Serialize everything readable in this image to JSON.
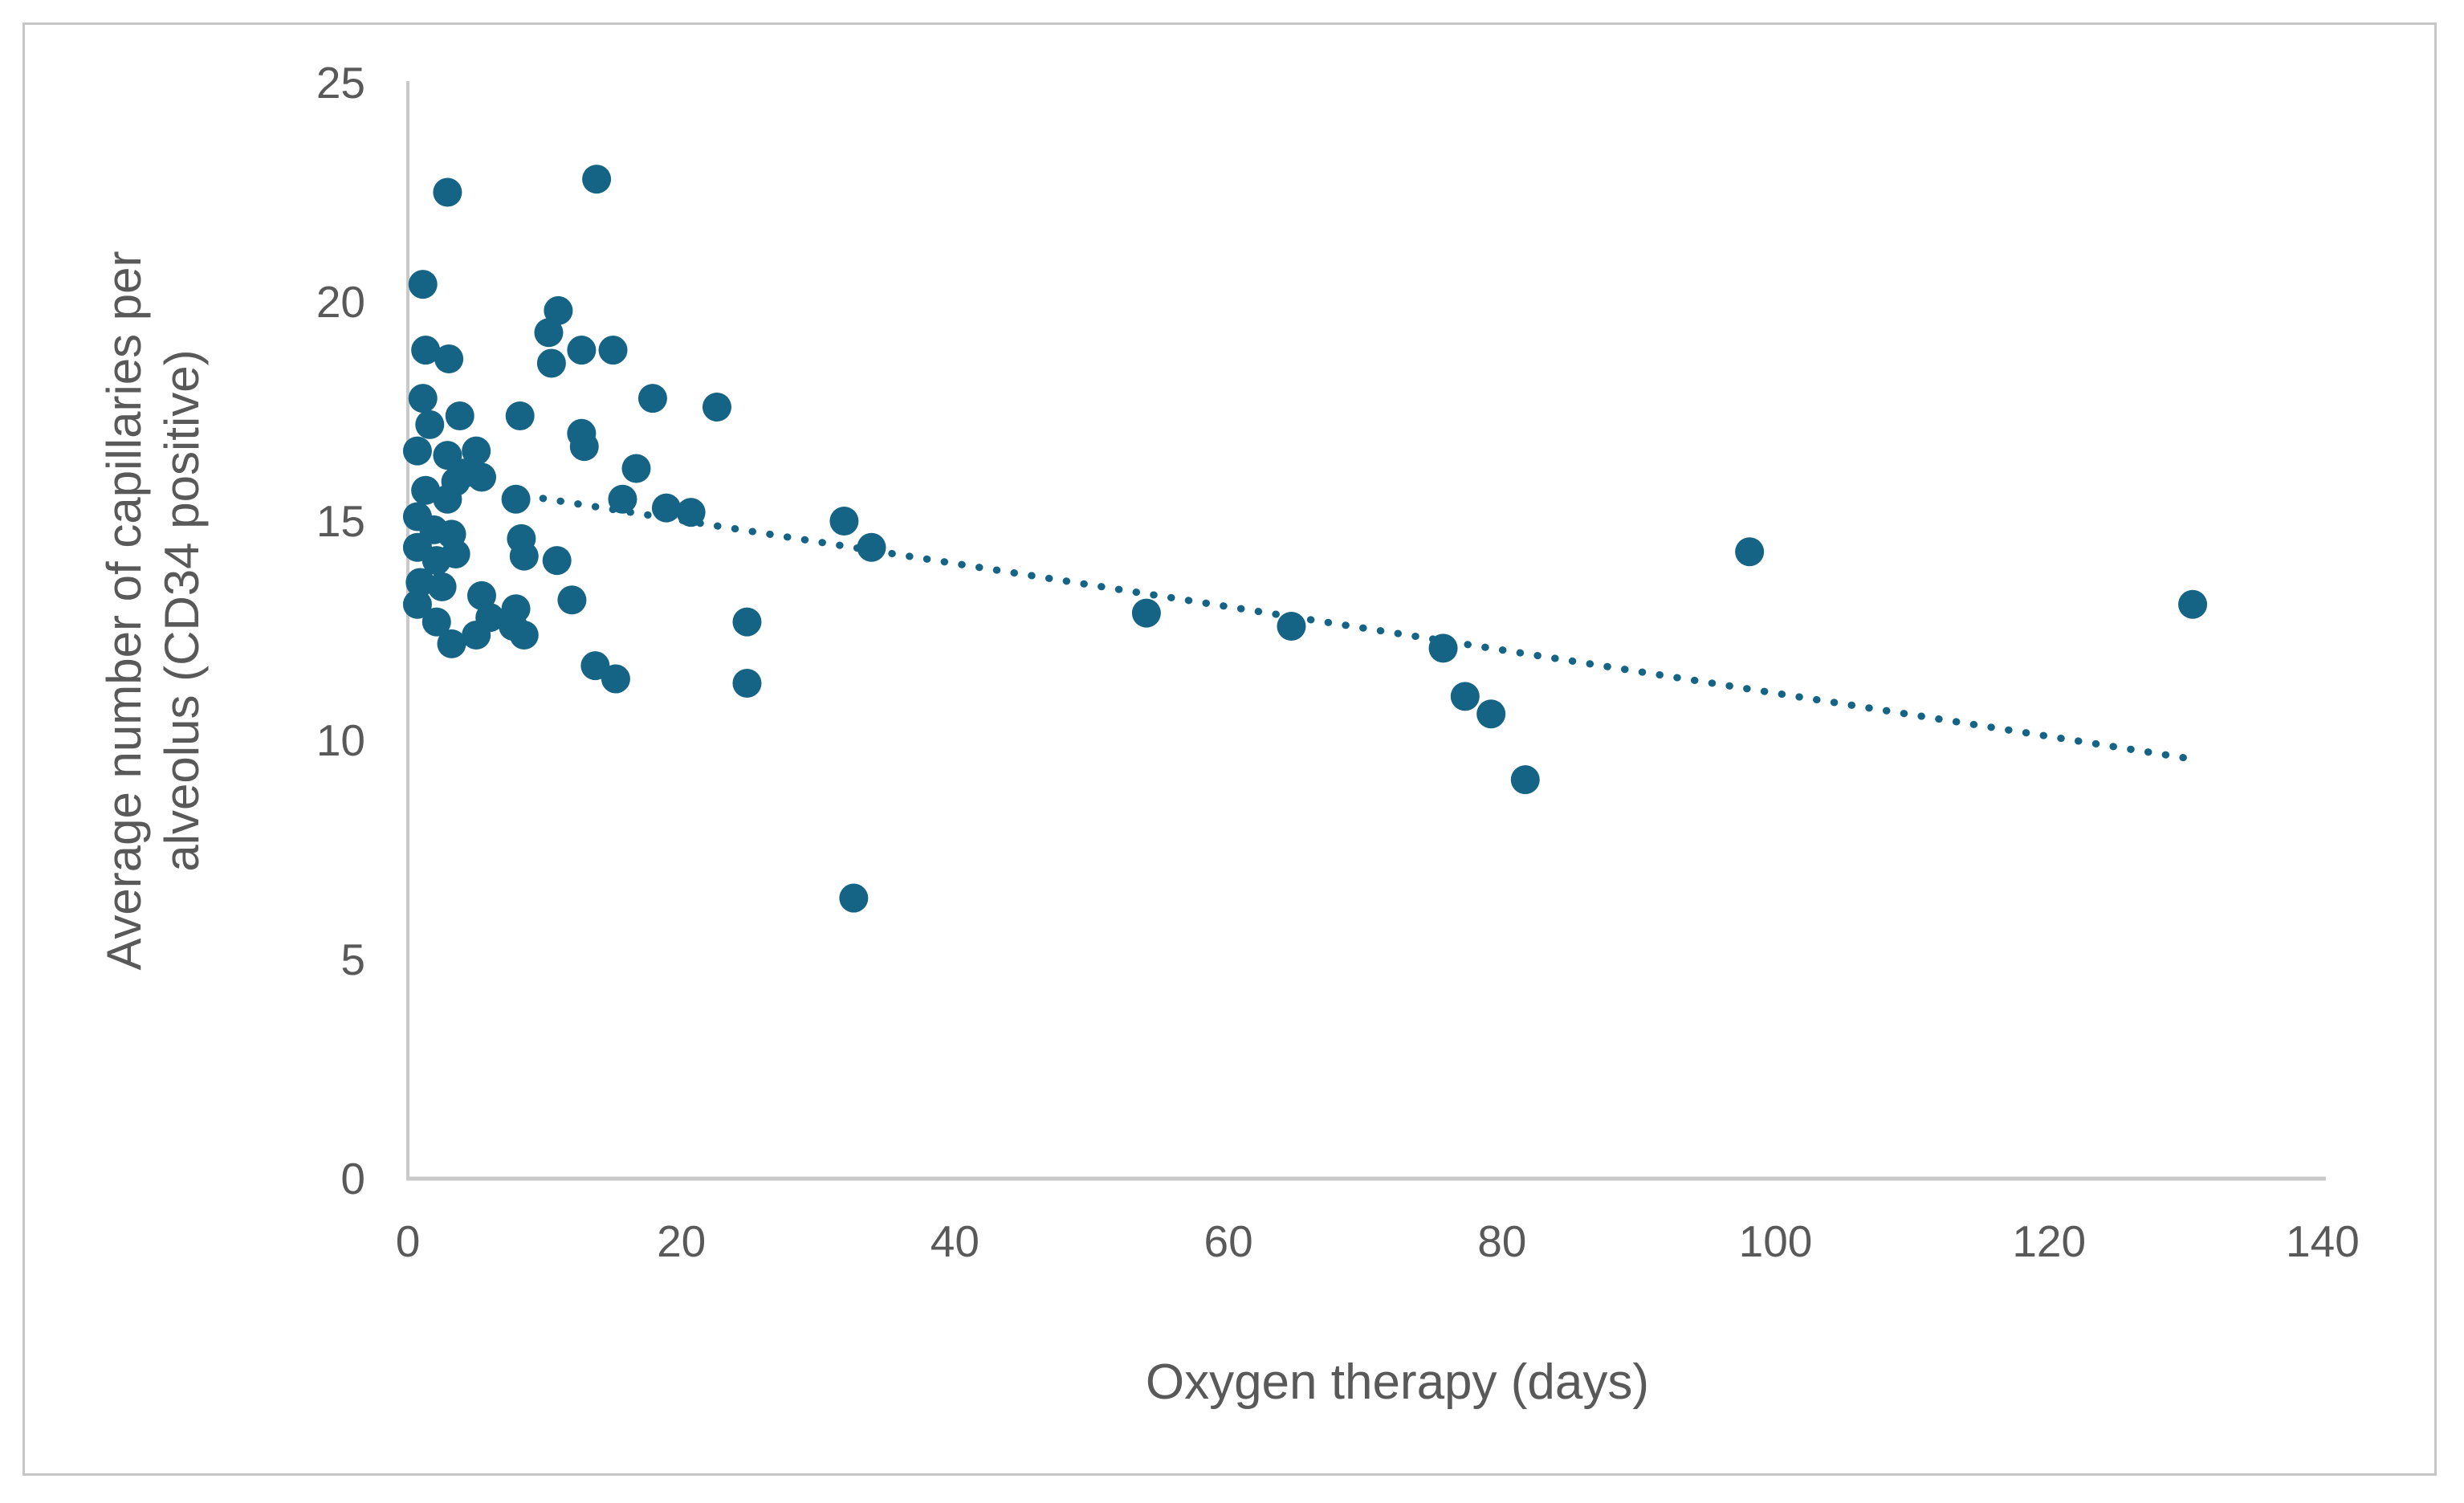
{
  "chart_data": {
    "type": "scatter",
    "title": "",
    "xlabel": "Oxygen therapy (days)",
    "ylabel_line1": "Average number of capillaries per",
    "ylabel_line2": "alveolus (CD34 positive)",
    "xlim": [
      0,
      140
    ],
    "ylim": [
      0,
      25
    ],
    "xticks": [
      0,
      20,
      40,
      60,
      80,
      100,
      120,
      140
    ],
    "yticks": [
      0,
      5,
      10,
      15,
      20,
      25
    ],
    "grid": false,
    "legend_position": "none",
    "point_color": "#156385",
    "axis_line_color": "#c9c9c9",
    "tick_text_color": "#595959",
    "axis_title_color": "#595959",
    "frame_border_color": "#c6c6c6",
    "points": [
      [
        13.8,
        22.8
      ],
      [
        2.9,
        22.5
      ],
      [
        1.1,
        20.4
      ],
      [
        11.0,
        19.8
      ],
      [
        10.3,
        19.3
      ],
      [
        12.7,
        18.9
      ],
      [
        15.0,
        18.9
      ],
      [
        1.3,
        18.9
      ],
      [
        3.0,
        18.7
      ],
      [
        10.5,
        18.6
      ],
      [
        1.1,
        17.8
      ],
      [
        17.9,
        17.8
      ],
      [
        22.6,
        17.6
      ],
      [
        3.8,
        17.4
      ],
      [
        8.2,
        17.4
      ],
      [
        1.6,
        17.2
      ],
      [
        12.7,
        17.0
      ],
      [
        12.9,
        16.7
      ],
      [
        0.7,
        16.6
      ],
      [
        5.0,
        16.6
      ],
      [
        2.9,
        16.5
      ],
      [
        16.7,
        16.2
      ],
      [
        4.2,
        16.1
      ],
      [
        5.4,
        16.0
      ],
      [
        3.5,
        15.9
      ],
      [
        1.3,
        15.7
      ],
      [
        2.9,
        15.5
      ],
      [
        7.9,
        15.5
      ],
      [
        15.7,
        15.5
      ],
      [
        18.9,
        15.3
      ],
      [
        20.7,
        15.2
      ],
      [
        0.7,
        15.1
      ],
      [
        31.9,
        15.0
      ],
      [
        1.9,
        14.8
      ],
      [
        3.2,
        14.7
      ],
      [
        8.3,
        14.6
      ],
      [
        0.7,
        14.4
      ],
      [
        33.9,
        14.4
      ],
      [
        3.5,
        14.25
      ],
      [
        98.1,
        14.3
      ],
      [
        8.5,
        14.2
      ],
      [
        2.1,
        14.1
      ],
      [
        10.9,
        14.1
      ],
      [
        0.9,
        13.6
      ],
      [
        2.5,
        13.5
      ],
      [
        5.4,
        13.3
      ],
      [
        12.0,
        13.2
      ],
      [
        7.9,
        13.0
      ],
      [
        0.7,
        13.1
      ],
      [
        130.5,
        13.1
      ],
      [
        54.0,
        12.9
      ],
      [
        6.0,
        12.8
      ],
      [
        2.1,
        12.7
      ],
      [
        24.8,
        12.7
      ],
      [
        7.7,
        12.6
      ],
      [
        64.6,
        12.6
      ],
      [
        8.5,
        12.4
      ],
      [
        5.0,
        12.4
      ],
      [
        3.2,
        12.2
      ],
      [
        75.7,
        12.1
      ],
      [
        13.7,
        11.7
      ],
      [
        15.2,
        11.4
      ],
      [
        24.8,
        11.3
      ],
      [
        77.3,
        11.0
      ],
      [
        79.2,
        10.6
      ],
      [
        81.7,
        9.1
      ],
      [
        32.6,
        6.4
      ]
    ],
    "trendline": {
      "style": "dotted",
      "color": "#156385",
      "x1": 8.6,
      "y1": 15.58,
      "x2": 130.3,
      "y2": 9.58
    }
  }
}
